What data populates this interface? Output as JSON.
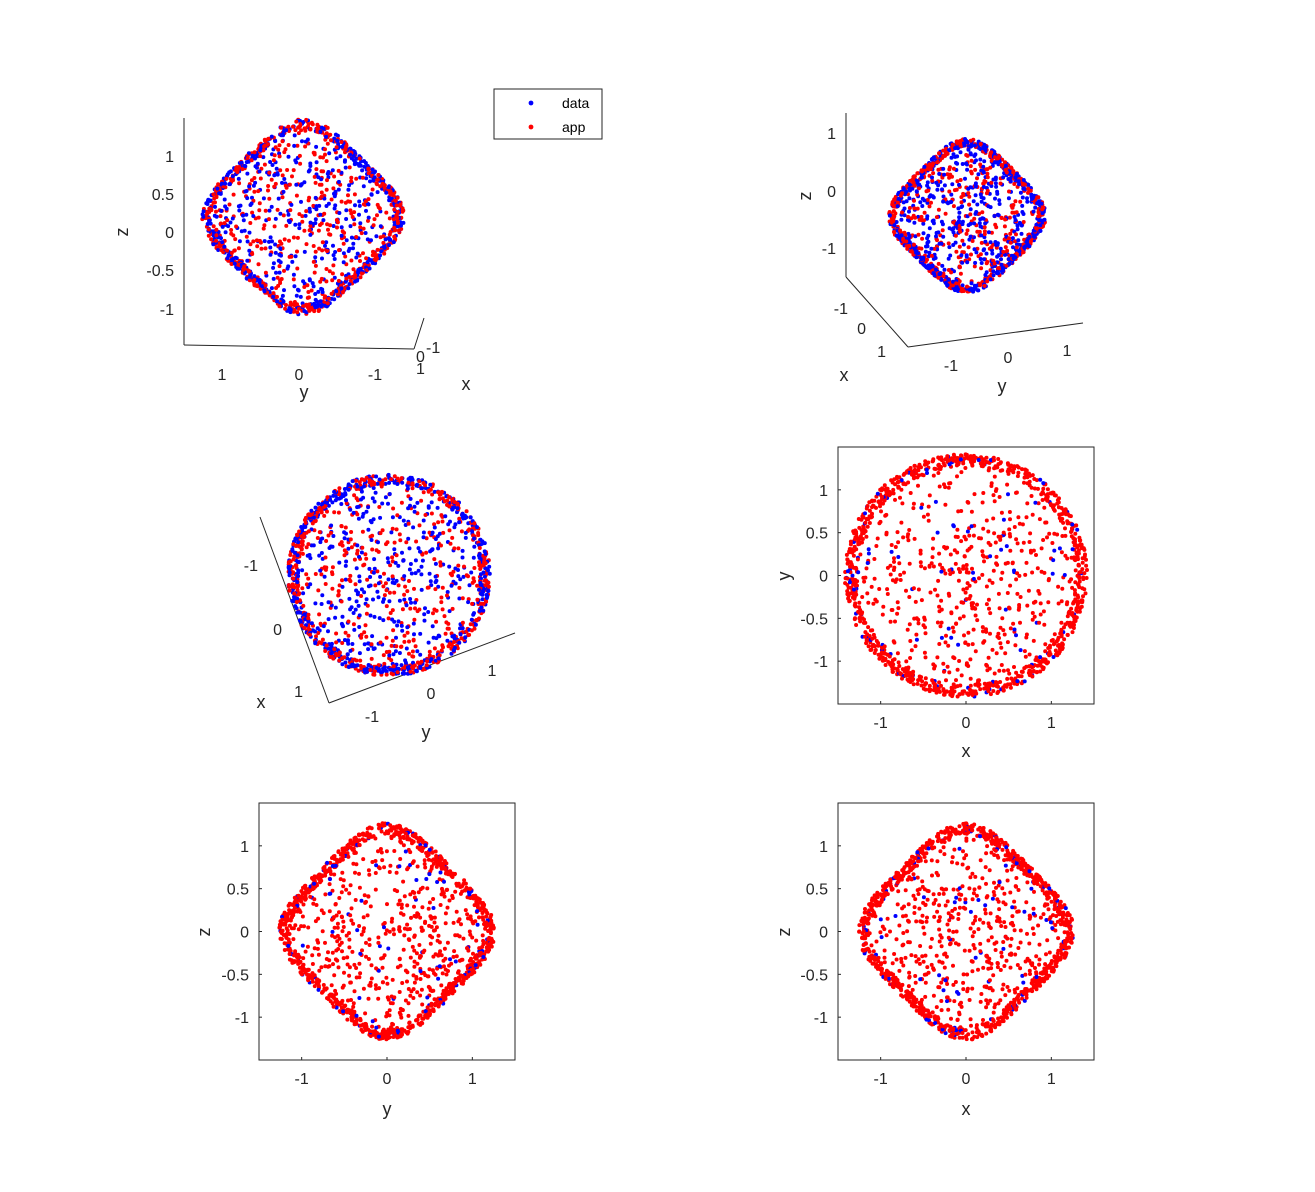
{
  "chart_data": [
    {
      "type": "scatter",
      "view": "3d",
      "xlabel": "y",
      "ylabel": "z",
      "depth_label": "x",
      "x_ticks": [
        "1",
        "0",
        "-1"
      ],
      "y_ticks": [
        "1",
        "0.5",
        "0",
        "-0.5",
        "-1"
      ],
      "depth_ticks": [
        "-1",
        "0",
        "1"
      ],
      "legend": {
        "entries": [
          "data",
          "app"
        ],
        "placement": "top-right"
      },
      "series": [
        {
          "name": "data",
          "color": "#0000ff"
        },
        {
          "name": "app",
          "color": "#ff0000"
        }
      ]
    },
    {
      "type": "scatter",
      "view": "3d",
      "xlabel": "y",
      "ylabel": "z",
      "depth_label": "x",
      "x_ticks": [
        "-1",
        "0",
        "1"
      ],
      "y_ticks": [
        "1",
        "0",
        "-1"
      ],
      "depth_ticks": [
        "-1",
        "0",
        "1"
      ],
      "series": [
        {
          "name": "data",
          "color": "#0000ff"
        },
        {
          "name": "app",
          "color": "#ff0000"
        }
      ]
    },
    {
      "type": "scatter",
      "view": "3d",
      "xlabel": "y",
      "ylabel": "x",
      "x_ticks": [
        "-1",
        "0",
        "1"
      ],
      "y_ticks": [
        "-1",
        "0",
        "1"
      ],
      "series": [
        {
          "name": "data",
          "color": "#0000ff"
        },
        {
          "name": "app",
          "color": "#ff0000"
        }
      ]
    },
    {
      "type": "scatter",
      "view": "2d",
      "xlabel": "x",
      "ylabel": "y",
      "xlim": [
        -1.5,
        1.5
      ],
      "ylim": [
        -1.5,
        1.5
      ],
      "x_ticks": [
        "-1",
        "0",
        "1"
      ],
      "y_ticks": [
        "1",
        "0.5",
        "0",
        "-0.5",
        "-1"
      ],
      "series": [
        {
          "name": "data",
          "color": "#0000ff"
        },
        {
          "name": "app",
          "color": "#ff0000"
        }
      ]
    },
    {
      "type": "scatter",
      "view": "2d",
      "xlabel": "y",
      "ylabel": "z",
      "xlim": [
        -1.5,
        1.5
      ],
      "ylim": [
        -1.5,
        1.5
      ],
      "x_ticks": [
        "-1",
        "0",
        "1"
      ],
      "y_ticks": [
        "1",
        "0.5",
        "0",
        "-0.5",
        "-1"
      ],
      "series": [
        {
          "name": "data",
          "color": "#0000ff"
        },
        {
          "name": "app",
          "color": "#ff0000"
        }
      ]
    },
    {
      "type": "scatter",
      "view": "2d",
      "xlabel": "x",
      "ylabel": "z",
      "xlim": [
        -1.5,
        1.5
      ],
      "ylim": [
        -1.5,
        1.5
      ],
      "x_ticks": [
        "-1",
        "0",
        "1"
      ],
      "y_ticks": [
        "1",
        "0.5",
        "0",
        "-0.5",
        "-1"
      ],
      "series": [
        {
          "name": "data",
          "color": "#0000ff"
        },
        {
          "name": "app",
          "color": "#ff0000"
        }
      ]
    }
  ]
}
